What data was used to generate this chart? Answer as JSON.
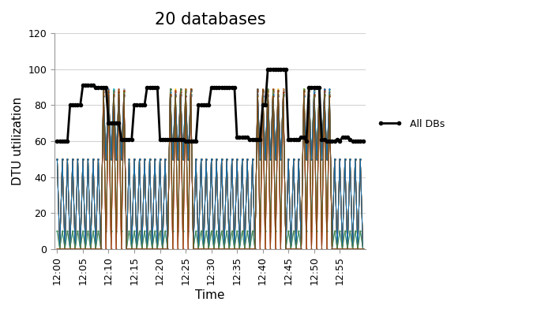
{
  "title": "20 databases",
  "xlabel": "Time",
  "ylabel": "DTU utilization",
  "ylim": [
    0,
    120
  ],
  "yticks": [
    0,
    20,
    40,
    60,
    80,
    100,
    120
  ],
  "time_labels": [
    "12:00",
    "12:05",
    "12:10",
    "12:15",
    "12:20",
    "12:25",
    "12:30",
    "12:35",
    "12:40",
    "12:45",
    "12:50",
    "12:55"
  ],
  "all_dbs_color": "#000000",
  "legend_label": "All DBs",
  "title_fontsize": 15,
  "axis_fontsize": 11,
  "tick_fontsize": 9,
  "background_color": "#ffffff",
  "grid_color": "#d4d4d4",
  "db_colors": [
    "#4472C4",
    "#ED7D31",
    "#A9D18E",
    "#FFC000",
    "#5B9BD5",
    "#70AD47",
    "#FF0000",
    "#7030A0",
    "#00B0F0",
    "#92D050",
    "#FF7070",
    "#C00000",
    "#BFBFBF",
    "#D6B656",
    "#2E75B6",
    "#C55A11",
    "#833C00",
    "#0070C0",
    "#538135",
    "#843C0C"
  ],
  "n_points": 120,
  "tick_every": 10,
  "all_dbs_values": [
    60,
    60,
    60,
    60,
    60,
    80,
    80,
    80,
    80,
    80,
    91,
    91,
    91,
    91,
    91,
    90,
    90,
    90,
    90,
    90,
    70,
    70,
    70,
    70,
    70,
    61,
    61,
    61,
    61,
    61,
    80,
    80,
    80,
    80,
    80,
    90,
    90,
    90,
    90,
    90,
    61,
    61,
    61,
    61,
    61,
    61,
    61,
    61,
    61,
    61,
    60,
    60,
    60,
    60,
    60,
    80,
    80,
    80,
    80,
    80,
    90,
    90,
    90,
    90,
    90,
    90,
    90,
    90,
    90,
    90,
    62,
    62,
    62,
    62,
    62,
    61,
    61,
    61,
    61,
    61,
    80,
    80,
    100,
    100,
    100,
    100,
    100,
    100,
    100,
    100,
    61,
    61,
    61,
    61,
    61,
    62,
    62,
    60,
    90,
    90,
    90,
    90,
    90,
    61,
    61,
    60,
    60,
    60,
    60,
    61,
    60,
    62,
    62,
    62,
    61,
    60,
    60,
    60,
    60,
    60
  ]
}
